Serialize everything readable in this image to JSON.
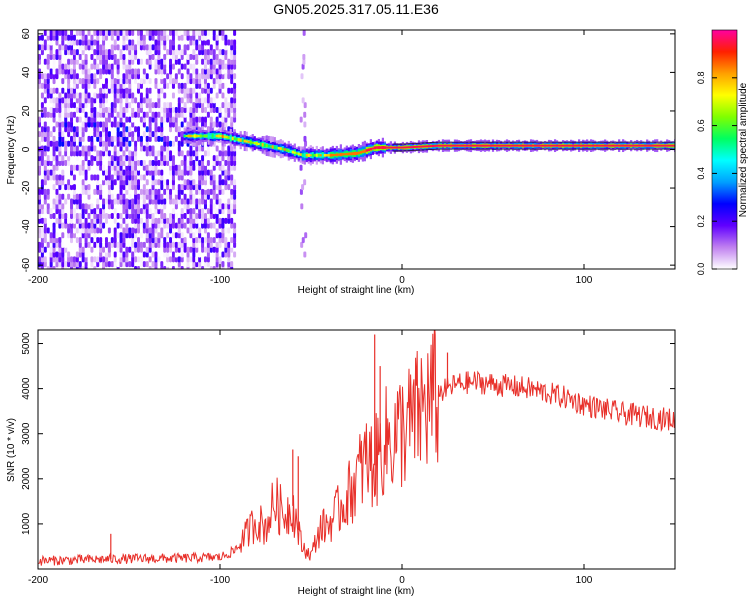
{
  "figure_title": "GN05.2025.317.05.11.E36",
  "chart_data": [
    {
      "type": "heatmap",
      "id": "spectrogram",
      "title": "GN05.2025.317.05.11.E36",
      "xlabel": "Height of straight line (km)",
      "ylabel": "Frequency (Hz)",
      "xlim": [
        -200,
        150
      ],
      "ylim": [
        -62,
        62
      ],
      "xticks": [
        -200,
        -100,
        0,
        100
      ],
      "yticks": [
        -60,
        -40,
        -20,
        0,
        20,
        40,
        60
      ],
      "colorbar": {
        "label": "Normalized spectral amplitude",
        "range": [
          0,
          1
        ],
        "ticks": [
          0.0,
          0.2,
          0.4,
          0.6,
          0.8
        ],
        "tick_labels": [
          "0.0",
          "0.2",
          "0.4",
          "0.6",
          "0.8"
        ],
        "colormap": [
          "#ffffff",
          "#c080f0",
          "#6000ff",
          "#0000ff",
          "#00a0ff",
          "#00ffff",
          "#00ff60",
          "#80ff00",
          "#ffff00",
          "#ffa000",
          "#ff2000",
          "#ff00a0"
        ]
      },
      "features": {
        "noise_region_x": [
          -200,
          -92
        ],
        "sparse_column_x": -55,
        "ridge": [
          {
            "x": -120,
            "f": 7
          },
          {
            "x": -100,
            "f": 7
          },
          {
            "x": -80,
            "f": 3
          },
          {
            "x": -65,
            "f": 0
          },
          {
            "x": -55,
            "f": -3
          },
          {
            "x": -40,
            "f": -3
          },
          {
            "x": -25,
            "f": -2
          },
          {
            "x": -15,
            "f": 1
          },
          {
            "x": 0,
            "f": 1
          },
          {
            "x": 20,
            "f": 2
          },
          {
            "x": 60,
            "f": 2
          },
          {
            "x": 100,
            "f": 2
          },
          {
            "x": 150,
            "f": 2
          }
        ]
      }
    },
    {
      "type": "line",
      "id": "snr",
      "xlabel": "Height of straight line (km)",
      "ylabel": "SNR (10 * v/v)",
      "xlim": [
        -200,
        150
      ],
      "ylim": [
        0,
        5300
      ],
      "xticks": [
        -200,
        -100,
        0,
        100
      ],
      "yticks": [
        1000,
        2000,
        3000,
        4000,
        5000
      ],
      "color": "#e8302a",
      "series": [
        {
          "name": "SNR envelope",
          "x": [
            -200,
            -180,
            -160,
            -140,
            -120,
            -100,
            -92,
            -85,
            -80,
            -75,
            -70,
            -65,
            -60,
            -55,
            -50,
            -45,
            -40,
            -35,
            -30,
            -25,
            -20,
            -15,
            -10,
            -5,
            0,
            5,
            10,
            15,
            20,
            25,
            30,
            40,
            50,
            60,
            70,
            80,
            90,
            100,
            110,
            120,
            130,
            140,
            150
          ],
          "y": [
            180,
            200,
            220,
            230,
            240,
            260,
            400,
            800,
            1100,
            900,
            1500,
            1200,
            1400,
            500,
            300,
            900,
            1000,
            1300,
            1600,
            2000,
            2400,
            2300,
            2800,
            2900,
            3100,
            3200,
            3500,
            3700,
            3900,
            4000,
            4100,
            4150,
            4100,
            4050,
            4000,
            3900,
            3800,
            3650,
            3550,
            3450,
            3400,
            3350,
            3300
          ]
        },
        {
          "name": "spikes",
          "x": [
            -160,
            -60,
            -57,
            -15,
            -12,
            25
          ],
          "y": [
            780,
            2650,
            2500,
            5200,
            4500,
            4800
          ]
        }
      ]
    }
  ]
}
